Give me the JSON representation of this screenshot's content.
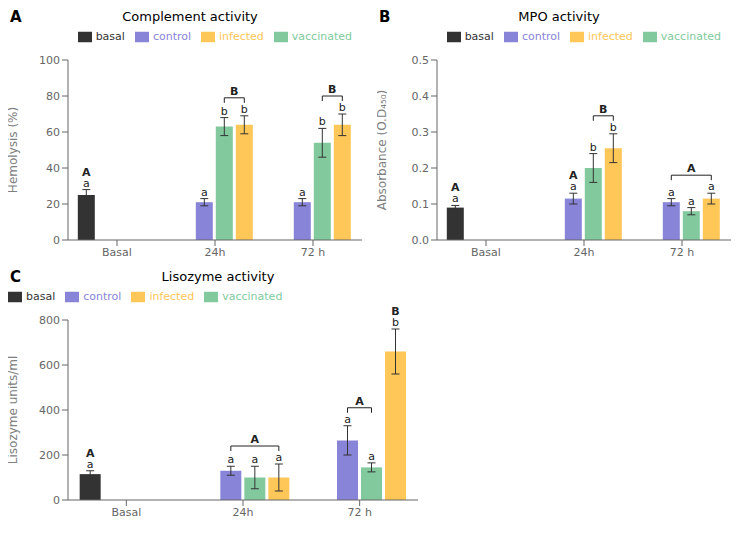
{
  "chart_data": [
    {
      "type": "bar",
      "panel_label": "A",
      "title": "Complement activity",
      "ylabel": "Hemolysis (%)",
      "categories": [
        "Basal",
        "24h",
        "72 h"
      ],
      "series": [
        {
          "name": "basal",
          "color": "#333333",
          "values": [
            25,
            null,
            null
          ],
          "errors": [
            3,
            null,
            null
          ]
        },
        {
          "name": "control",
          "color": "#8884d8",
          "values": [
            null,
            21,
            21
          ],
          "errors": [
            null,
            2,
            2
          ]
        },
        {
          "name": "vaccinated",
          "color": "#82ca9d",
          "values": [
            null,
            63,
            54
          ],
          "errors": [
            null,
            5,
            8
          ]
        },
        {
          "name": "infected",
          "color": "#ffc658",
          "values": [
            null,
            64,
            64
          ],
          "errors": [
            null,
            5,
            6
          ]
        }
      ],
      "ylim": [
        0,
        100
      ],
      "yticks": [
        0,
        20,
        40,
        60,
        80,
        100
      ],
      "grid": false,
      "legend": "upper right",
      "annotations": [
        {
          "text": "a",
          "category": "Basal",
          "series": "basal"
        },
        {
          "text": "A",
          "category": "Basal",
          "series": "basal"
        },
        {
          "text": "a",
          "category": "24h",
          "series": "control"
        },
        {
          "text": "b",
          "category": "24h",
          "series": "vaccinated"
        },
        {
          "text": "b",
          "category": "24h",
          "series": "infected"
        },
        {
          "text": "a",
          "category": "72 h",
          "series": "control"
        },
        {
          "text": "b",
          "category": "72 h",
          "series": "vaccinated"
        },
        {
          "text": "b",
          "category": "72 h",
          "series": "infected"
        }
      ],
      "brackets": [
        {
          "text": "B",
          "category": "24h",
          "from": "vaccinated",
          "to": "infected"
        },
        {
          "text": "B",
          "category": "72 h",
          "from": "vaccinated",
          "to": "infected"
        }
      ]
    },
    {
      "type": "bar",
      "panel_label": "B",
      "title": "MPO activity",
      "ylabel": "Absorbance (O.D₄₅₀)",
      "categories": [
        "Basal",
        "24h",
        "72 h"
      ],
      "series": [
        {
          "name": "basal",
          "color": "#333333",
          "values": [
            0.09,
            null,
            null
          ],
          "errors": [
            0.006,
            null,
            null
          ]
        },
        {
          "name": "control",
          "color": "#8884d8",
          "values": [
            null,
            0.115,
            0.105
          ],
          "errors": [
            null,
            0.015,
            0.01
          ]
        },
        {
          "name": "vaccinated",
          "color": "#82ca9d",
          "values": [
            null,
            0.2,
            0.08
          ],
          "errors": [
            null,
            0.04,
            0.01
          ]
        },
        {
          "name": "infected",
          "color": "#ffc658",
          "values": [
            null,
            0.255,
            0.115
          ],
          "errors": [
            null,
            0.04,
            0.015
          ]
        }
      ],
      "ylim": [
        0,
        0.5
      ],
      "yticks": [
        {
          "value": 0,
          "label": "0.0"
        },
        0.1,
        0.2,
        0.3,
        0.4,
        0.5
      ],
      "grid": false,
      "legend": "upper right",
      "annotations": [
        {
          "text": "a",
          "category": "Basal",
          "series": "basal"
        },
        {
          "text": "A",
          "category": "Basal",
          "series": "basal"
        },
        {
          "text": "a",
          "category": "24h",
          "series": "control"
        },
        {
          "text": "A",
          "category": "24h",
          "series": "control"
        },
        {
          "text": "b",
          "category": "24h",
          "series": "vaccinated"
        },
        {
          "text": "b",
          "category": "24h",
          "series": "infected"
        },
        {
          "text": "a",
          "category": "72 h",
          "series": "control"
        },
        {
          "text": "a",
          "category": "72 h",
          "series": "vaccinated"
        },
        {
          "text": "a",
          "category": "72 h",
          "series": "infected"
        }
      ],
      "brackets": [
        {
          "text": "B",
          "category": "24h",
          "from": "vaccinated",
          "to": "infected"
        },
        {
          "text": "A",
          "category": "72 h",
          "from": "control",
          "to": "infected"
        }
      ]
    },
    {
      "type": "bar",
      "panel_label": "C",
      "title": "Lisozyme activity",
      "ylabel": "Lisozyme units/ml",
      "categories": [
        "Basal",
        "24h",
        "72 h"
      ],
      "series": [
        {
          "name": "basal",
          "color": "#333333",
          "values": [
            115,
            null,
            null
          ],
          "errors": [
            15,
            null,
            null
          ]
        },
        {
          "name": "control",
          "color": "#8884d8",
          "values": [
            null,
            130,
            265
          ],
          "errors": [
            null,
            20,
            65
          ]
        },
        {
          "name": "vaccinated",
          "color": "#82ca9d",
          "values": [
            null,
            100,
            145
          ],
          "errors": [
            null,
            50,
            20
          ]
        },
        {
          "name": "infected",
          "color": "#ffc658",
          "values": [
            null,
            100,
            660
          ],
          "errors": [
            null,
            60,
            100
          ]
        }
      ],
      "ylim": [
        0,
        800
      ],
      "yticks": [
        0,
        200,
        400,
        600,
        800
      ],
      "grid": false,
      "legend": "upper left",
      "annotations": [
        {
          "text": "a",
          "category": "Basal",
          "series": "basal"
        },
        {
          "text": "A",
          "category": "Basal",
          "series": "basal"
        },
        {
          "text": "a",
          "category": "24h",
          "series": "control"
        },
        {
          "text": "a",
          "category": "24h",
          "series": "vaccinated"
        },
        {
          "text": "a",
          "category": "24h",
          "series": "infected"
        },
        {
          "text": "a",
          "category": "72 h",
          "series": "control"
        },
        {
          "text": "a",
          "category": "72 h",
          "series": "vaccinated"
        },
        {
          "text": "b",
          "category": "72 h",
          "series": "infected"
        },
        {
          "text": "B",
          "category": "72 h",
          "series": "infected"
        }
      ],
      "brackets": [
        {
          "text": "A",
          "category": "24h",
          "from": "control",
          "to": "infected"
        },
        {
          "text": "A",
          "category": "72 h",
          "from": "control",
          "to": "vaccinated"
        }
      ]
    }
  ]
}
